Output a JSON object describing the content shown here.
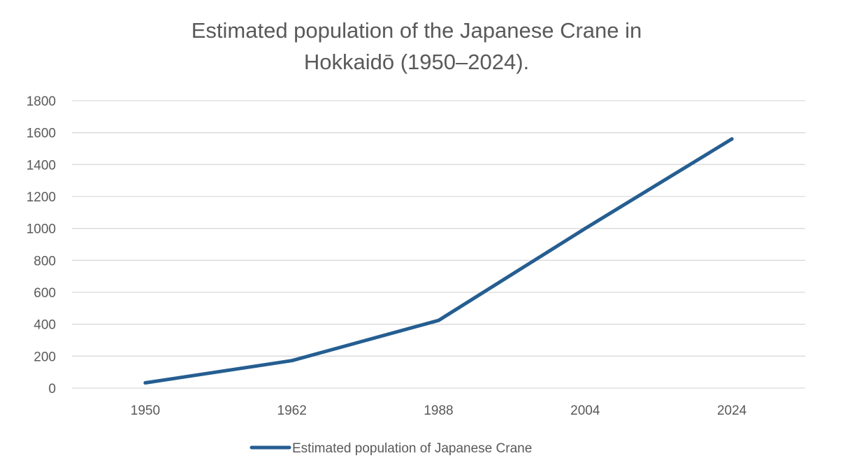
{
  "chart_data": {
    "type": "line",
    "title_lines": [
      "Estimated population of the Japanese Crane in",
      "Hokkaidō (1950–2024)."
    ],
    "xlabel": "",
    "ylabel": "",
    "categories": [
      "1950",
      "1962",
      "1988",
      "2004",
      "2024"
    ],
    "series": [
      {
        "name": "Estimated population of Japanese Crane",
        "color": "#255e91",
        "values": [
          33,
          172,
          424,
          1000,
          1560
        ]
      }
    ],
    "ylim": [
      0,
      1800
    ],
    "yticks": [
      "0",
      "200",
      "400",
      "600",
      "800",
      "1000",
      "1200",
      "1400",
      "1600",
      "1800"
    ],
    "grid": true,
    "legend_position": "bottom"
  }
}
